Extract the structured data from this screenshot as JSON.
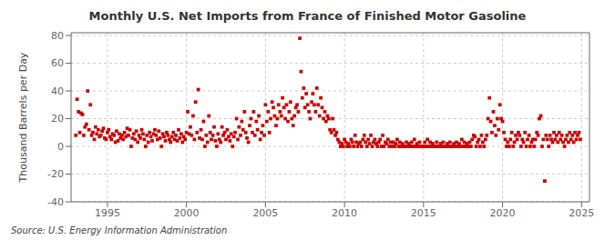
{
  "chart_data": {
    "type": "scatter",
    "title": "Monthly U.S. Net Imports from France of Finished Motor Gasoline",
    "ylabel": "Thousand Barrels per Day",
    "annotations": [
      "Source: U.S. Energy Information Administration"
    ],
    "color": "#CC0000",
    "marker": "square",
    "grid": true,
    "xlim": [
      1992.7,
      2025.5
    ],
    "ylim": [
      -40,
      82
    ],
    "xticks": [
      1995,
      2000,
      2005,
      2010,
      2015,
      2020,
      2025
    ],
    "yticks": [
      -40,
      -20,
      0,
      20,
      40,
      60,
      80
    ],
    "x": [
      1993.0,
      1993.08,
      1993.17,
      1993.25,
      1993.33,
      1993.42,
      1993.5,
      1993.58,
      1993.67,
      1993.75,
      1993.83,
      1993.92,
      1994.0,
      1994.08,
      1994.17,
      1994.25,
      1994.33,
      1994.42,
      1994.5,
      1994.58,
      1994.67,
      1994.75,
      1994.83,
      1994.92,
      1995.0,
      1995.08,
      1995.17,
      1995.25,
      1995.33,
      1995.42,
      1995.5,
      1995.58,
      1995.67,
      1995.75,
      1995.83,
      1995.92,
      1996.0,
      1996.08,
      1996.17,
      1996.25,
      1996.33,
      1996.42,
      1996.5,
      1996.58,
      1996.67,
      1996.75,
      1996.83,
      1996.92,
      1997.0,
      1997.08,
      1997.17,
      1997.25,
      1997.33,
      1997.42,
      1997.5,
      1997.58,
      1997.67,
      1997.75,
      1997.83,
      1997.92,
      1998.0,
      1998.08,
      1998.17,
      1998.25,
      1998.33,
      1998.42,
      1998.5,
      1998.58,
      1998.67,
      1998.75,
      1998.83,
      1998.92,
      1999.0,
      1999.08,
      1999.17,
      1999.25,
      1999.33,
      1999.42,
      1999.5,
      1999.58,
      1999.67,
      1999.75,
      1999.83,
      1999.92,
      2000.0,
      2000.08,
      2000.17,
      2000.25,
      2000.33,
      2000.42,
      2000.5,
      2000.58,
      2000.67,
      2000.75,
      2000.83,
      2000.92,
      2001.0,
      2001.08,
      2001.17,
      2001.25,
      2001.33,
      2001.42,
      2001.5,
      2001.58,
      2001.67,
      2001.75,
      2001.83,
      2001.92,
      2002.0,
      2002.08,
      2002.17,
      2002.25,
      2002.33,
      2002.42,
      2002.5,
      2002.58,
      2002.67,
      2002.75,
      2002.83,
      2002.92,
      2003.0,
      2003.08,
      2003.17,
      2003.25,
      2003.33,
      2003.42,
      2003.5,
      2003.58,
      2003.67,
      2003.75,
      2003.83,
      2003.92,
      2004.0,
      2004.08,
      2004.17,
      2004.25,
      2004.33,
      2004.42,
      2004.5,
      2004.58,
      2004.67,
      2004.75,
      2004.83,
      2004.92,
      2005.0,
      2005.08,
      2005.17,
      2005.25,
      2005.33,
      2005.42,
      2005.5,
      2005.58,
      2005.67,
      2005.75,
      2005.83,
      2005.92,
      2006.0,
      2006.08,
      2006.17,
      2006.25,
      2006.33,
      2006.42,
      2006.5,
      2006.58,
      2006.67,
      2006.75,
      2006.83,
      2006.92,
      2007.0,
      2007.08,
      2007.17,
      2007.25,
      2007.33,
      2007.42,
      2007.5,
      2007.58,
      2007.67,
      2007.75,
      2007.83,
      2007.92,
      2008.0,
      2008.08,
      2008.17,
      2008.25,
      2008.33,
      2008.42,
      2008.5,
      2008.58,
      2008.67,
      2008.75,
      2008.83,
      2008.92,
      2009.0,
      2009.08,
      2009.17,
      2009.25,
      2009.33,
      2009.42,
      2009.5,
      2009.58,
      2009.67,
      2009.75,
      2009.83,
      2009.92,
      2010.0,
      2010.08,
      2010.17,
      2010.25,
      2010.33,
      2010.42,
      2010.5,
      2010.58,
      2010.67,
      2010.75,
      2010.83,
      2010.92,
      2011.0,
      2011.08,
      2011.17,
      2011.25,
      2011.33,
      2011.42,
      2011.5,
      2011.58,
      2011.67,
      2011.75,
      2011.83,
      2011.92,
      2012.0,
      2012.08,
      2012.17,
      2012.25,
      2012.33,
      2012.42,
      2012.5,
      2012.58,
      2012.67,
      2012.75,
      2012.83,
      2012.92,
      2013.0,
      2013.08,
      2013.17,
      2013.25,
      2013.33,
      2013.42,
      2013.5,
      2013.58,
      2013.67,
      2013.75,
      2013.83,
      2013.92,
      2014.0,
      2014.08,
      2014.17,
      2014.25,
      2014.33,
      2014.42,
      2014.5,
      2014.58,
      2014.67,
      2014.75,
      2014.83,
      2014.92,
      2015.0,
      2015.08,
      2015.17,
      2015.25,
      2015.33,
      2015.42,
      2015.5,
      2015.58,
      2015.67,
      2015.75,
      2015.83,
      2015.92,
      2016.0,
      2016.08,
      2016.17,
      2016.25,
      2016.33,
      2016.42,
      2016.5,
      2016.58,
      2016.67,
      2016.75,
      2016.83,
      2016.92,
      2017.0,
      2017.08,
      2017.17,
      2017.25,
      2017.33,
      2017.42,
      2017.5,
      2017.58,
      2017.67,
      2017.75,
      2017.83,
      2017.92,
      2018.0,
      2018.08,
      2018.17,
      2018.25,
      2018.33,
      2018.42,
      2018.5,
      2018.58,
      2018.67,
      2018.75,
      2018.83,
      2018.92,
      2019.0,
      2019.08,
      2019.17,
      2019.25,
      2019.33,
      2019.42,
      2019.5,
      2019.58,
      2019.67,
      2019.75,
      2019.83,
      2019.92,
      2020.0,
      2020.08,
      2020.17,
      2020.25,
      2020.33,
      2020.42,
      2020.5,
      2020.58,
      2020.67,
      2020.75,
      2020.83,
      2020.92,
      2021.0,
      2021.08,
      2021.17,
      2021.25,
      2021.33,
      2021.42,
      2021.5,
      2021.58,
      2021.67,
      2021.75,
      2021.83,
      2021.92,
      2022.0,
      2022.08,
      2022.17,
      2022.25,
      2022.33,
      2022.42,
      2022.5,
      2022.58,
      2022.67,
      2022.75,
      2022.83,
      2022.92,
      2023.0,
      2023.08,
      2023.17,
      2023.25,
      2023.33,
      2023.42,
      2023.5,
      2023.58,
      2023.67,
      2023.75,
      2023.83,
      2023.92,
      2024.0,
      2024.08,
      2024.17,
      2024.25,
      2024.33,
      2024.42,
      2024.5,
      2024.58,
      2024.67,
      2024.75,
      2024.83,
      2024.92
    ],
    "values": [
      8,
      34,
      25,
      10,
      24,
      23,
      8,
      14,
      16,
      40,
      12,
      30,
      8,
      10,
      5,
      14,
      9,
      12,
      7,
      8,
      11,
      13,
      6,
      5,
      10,
      12,
      7,
      5,
      9,
      8,
      3,
      11,
      4,
      9,
      6,
      8,
      5,
      10,
      7,
      13,
      8,
      12,
      0,
      6,
      9,
      5,
      11,
      3,
      8,
      6,
      12,
      9,
      5,
      0,
      8,
      3,
      10,
      7,
      4,
      9,
      12,
      8,
      5,
      11,
      6,
      0,
      9,
      7,
      4,
      10,
      8,
      5,
      3,
      7,
      10,
      5,
      8,
      4,
      12,
      6,
      9,
      3,
      7,
      5,
      10,
      25,
      9,
      14,
      8,
      22,
      5,
      32,
      10,
      41,
      6,
      12,
      5,
      18,
      0,
      8,
      3,
      22,
      10,
      5,
      8,
      14,
      4,
      0,
      9,
      5,
      3,
      14,
      8,
      10,
      5,
      12,
      7,
      4,
      9,
      0,
      7,
      10,
      20,
      5,
      14,
      8,
      18,
      12,
      25,
      10,
      6,
      3,
      15,
      20,
      10,
      25,
      8,
      18,
      12,
      22,
      5,
      10,
      15,
      8,
      30,
      18,
      25,
      10,
      20,
      32,
      28,
      22,
      15,
      20,
      30,
      25,
      22,
      35,
      28,
      20,
      30,
      18,
      25,
      32,
      20,
      15,
      22,
      28,
      30,
      25,
      78,
      54,
      35,
      42,
      28,
      38,
      30,
      25,
      20,
      32,
      38,
      30,
      25,
      42,
      30,
      22,
      35,
      28,
      20,
      25,
      18,
      22,
      20,
      12,
      10,
      20,
      12,
      8,
      10,
      5,
      3,
      0,
      2,
      0,
      5,
      3,
      0,
      2,
      0,
      5,
      3,
      0,
      8,
      3,
      0,
      2,
      3,
      0,
      5,
      8,
      3,
      0,
      5,
      2,
      8,
      0,
      3,
      5,
      2,
      0,
      3,
      5,
      0,
      8,
      0,
      3,
      2,
      5,
      0,
      3,
      0,
      3,
      0,
      2,
      5,
      0,
      3,
      0,
      2,
      0,
      0,
      3,
      0,
      2,
      0,
      3,
      0,
      5,
      0,
      2,
      0,
      3,
      0,
      0,
      0,
      3,
      0,
      5,
      0,
      3,
      0,
      2,
      0,
      0,
      3,
      0,
      0,
      2,
      0,
      3,
      0,
      0,
      2,
      0,
      3,
      0,
      0,
      2,
      0,
      3,
      0,
      2,
      0,
      5,
      0,
      3,
      0,
      2,
      0,
      3,
      0,
      5,
      8,
      7,
      0,
      3,
      5,
      0,
      8,
      3,
      0,
      5,
      8,
      20,
      35,
      18,
      10,
      25,
      15,
      8,
      20,
      12,
      30,
      20,
      18,
      10,
      5,
      0,
      3,
      0,
      5,
      10,
      0,
      3,
      8,
      5,
      10,
      8,
      0,
      5,
      3,
      10,
      0,
      5,
      8,
      0,
      3,
      5,
      0,
      5,
      10,
      8,
      20,
      22,
      0,
      5,
      -25,
      8,
      5,
      0,
      8,
      5,
      3,
      10,
      5,
      8,
      3,
      10,
      5,
      8,
      3,
      0,
      5,
      8,
      3,
      10,
      5,
      8,
      3,
      10,
      5,
      8,
      10,
      5
    ]
  }
}
